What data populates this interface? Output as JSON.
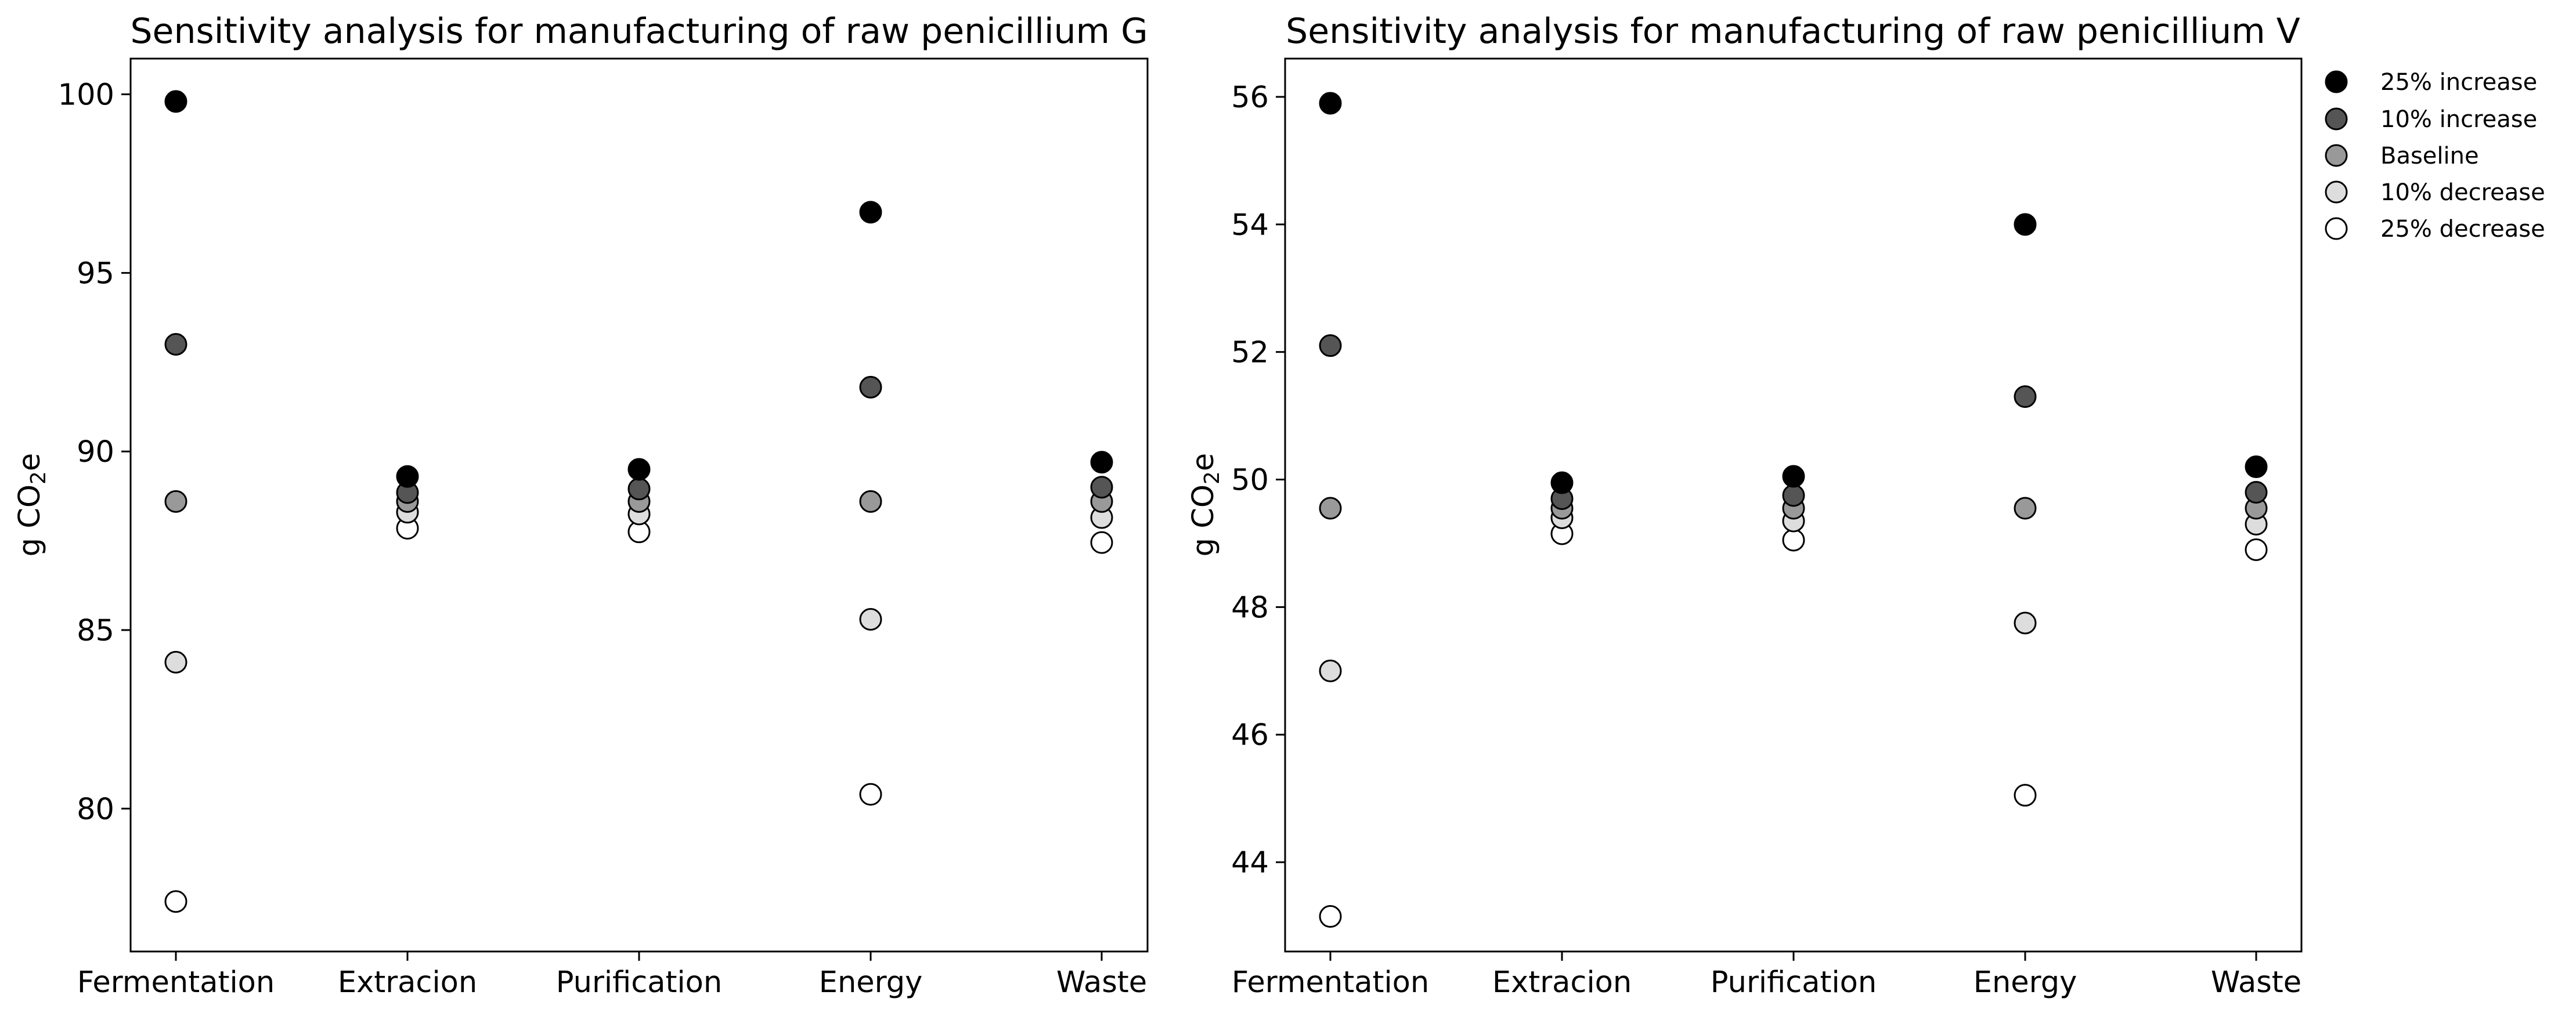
{
  "chart_data": [
    {
      "type": "scatter",
      "title": "Sensitivity analysis for manufacturing of raw penicillium G",
      "ylabel_main": "g CO",
      "ylabel_sub": "2",
      "ylabel_tail": "e",
      "xlabel": "",
      "categories": [
        "Fermentation",
        "Extracion",
        "Purification",
        "Energy",
        "Waste"
      ],
      "ylim": [
        76.0,
        101.0
      ],
      "yticks": [
        80,
        85,
        90,
        95,
        100
      ],
      "series": [
        {
          "name": "25% increase",
          "color": "#000000",
          "values": [
            99.8,
            89.3,
            89.5,
            96.7,
            89.7
          ]
        },
        {
          "name": "10% increase",
          "color": "#555555",
          "values": [
            93.0,
            88.85,
            88.95,
            91.8,
            89.0
          ]
        },
        {
          "name": "Baseline",
          "color": "#999999",
          "values": [
            88.6,
            88.6,
            88.6,
            88.6,
            88.6
          ]
        },
        {
          "name": "10% decrease",
          "color": "#dddddd",
          "values": [
            84.1,
            88.3,
            88.25,
            85.3,
            88.15
          ]
        },
        {
          "name": "25% decrease",
          "color": "#ffffff",
          "values": [
            77.4,
            87.85,
            87.75,
            80.4,
            87.45
          ]
        }
      ],
      "grid": false,
      "legend": "none"
    },
    {
      "type": "scatter",
      "title": "Sensitivity analysis for manufacturing of raw penicillium V",
      "ylabel_main": "g CO",
      "ylabel_sub": "2",
      "ylabel_tail": "e",
      "xlabel": "",
      "categories": [
        "Fermentation",
        "Extracion",
        "Purification",
        "Energy",
        "Waste"
      ],
      "ylim": [
        42.6,
        56.6
      ],
      "yticks": [
        44,
        46,
        48,
        50,
        52,
        54,
        56
      ],
      "series": [
        {
          "name": "25% increase",
          "color": "#000000",
          "values": [
            55.9,
            49.95,
            50.05,
            54.0,
            50.2
          ]
        },
        {
          "name": "10% increase",
          "color": "#555555",
          "values": [
            52.1,
            49.7,
            49.75,
            51.3,
            49.8
          ]
        },
        {
          "name": "Baseline",
          "color": "#999999",
          "values": [
            49.55,
            49.55,
            49.55,
            49.55,
            49.55
          ]
        },
        {
          "name": "10% decrease",
          "color": "#dddddd",
          "values": [
            47.0,
            49.4,
            49.35,
            47.75,
            49.3
          ]
        },
        {
          "name": "25% decrease",
          "color": "#ffffff",
          "values": [
            43.15,
            49.15,
            49.05,
            45.05,
            48.9
          ]
        }
      ],
      "grid": false,
      "legend": "outside-top-right"
    }
  ]
}
